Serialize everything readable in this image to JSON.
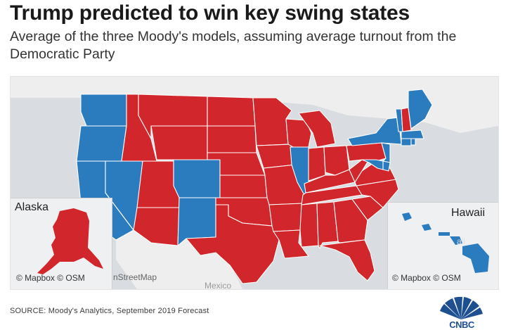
{
  "header": {
    "title": "Trump predicted to win key swing states",
    "subtitle": "Average of the three Moody's models, assuming average turnout from the Democratic Party"
  },
  "colors": {
    "republican": "#d1262b",
    "democrat": "#2b7bbf",
    "background_land": "#eeeeee",
    "water": "#d9dce0"
  },
  "map": {
    "basemap_fragments": {
      "openstreetmap": "nStreetMap",
      "country": "Mexico"
    },
    "alaska_inset": {
      "title": "Alaska",
      "credit": "© Mapbox © OSM",
      "party": "republican"
    },
    "hawaii_inset": {
      "title": "Hawaii",
      "credit": "© Mapbox © OSM",
      "party": "democrat",
      "faint_label": "aii"
    },
    "states": [
      {
        "name": "Washington",
        "party": "democrat"
      },
      {
        "name": "Oregon",
        "party": "democrat"
      },
      {
        "name": "California",
        "party": "democrat"
      },
      {
        "name": "Nevada",
        "party": "democrat"
      },
      {
        "name": "Idaho",
        "party": "republican"
      },
      {
        "name": "Montana",
        "party": "republican"
      },
      {
        "name": "Wyoming",
        "party": "republican"
      },
      {
        "name": "Utah",
        "party": "republican"
      },
      {
        "name": "Arizona",
        "party": "republican"
      },
      {
        "name": "Colorado",
        "party": "democrat"
      },
      {
        "name": "New Mexico",
        "party": "democrat"
      },
      {
        "name": "North Dakota",
        "party": "republican"
      },
      {
        "name": "South Dakota",
        "party": "republican"
      },
      {
        "name": "Nebraska",
        "party": "republican"
      },
      {
        "name": "Kansas",
        "party": "republican"
      },
      {
        "name": "Oklahoma",
        "party": "republican"
      },
      {
        "name": "Texas",
        "party": "republican"
      },
      {
        "name": "Minnesota",
        "party": "republican"
      },
      {
        "name": "Iowa",
        "party": "republican"
      },
      {
        "name": "Missouri",
        "party": "republican"
      },
      {
        "name": "Arkansas",
        "party": "republican"
      },
      {
        "name": "Louisiana",
        "party": "republican"
      },
      {
        "name": "Wisconsin",
        "party": "republican"
      },
      {
        "name": "Illinois",
        "party": "democrat"
      },
      {
        "name": "Michigan",
        "party": "republican"
      },
      {
        "name": "Indiana",
        "party": "republican"
      },
      {
        "name": "Ohio",
        "party": "republican"
      },
      {
        "name": "Kentucky",
        "party": "republican"
      },
      {
        "name": "Tennessee",
        "party": "republican"
      },
      {
        "name": "Mississippi",
        "party": "republican"
      },
      {
        "name": "Alabama",
        "party": "republican"
      },
      {
        "name": "Georgia",
        "party": "republican"
      },
      {
        "name": "Florida",
        "party": "republican"
      },
      {
        "name": "South Carolina",
        "party": "republican"
      },
      {
        "name": "North Carolina",
        "party": "republican"
      },
      {
        "name": "Virginia",
        "party": "republican"
      },
      {
        "name": "West Virginia",
        "party": "republican"
      },
      {
        "name": "Pennsylvania",
        "party": "republican"
      },
      {
        "name": "New York",
        "party": "democrat"
      },
      {
        "name": "New Jersey",
        "party": "democrat"
      },
      {
        "name": "Delaware",
        "party": "democrat"
      },
      {
        "name": "Maryland",
        "party": "democrat"
      },
      {
        "name": "Connecticut",
        "party": "democrat"
      },
      {
        "name": "Rhode Island",
        "party": "democrat"
      },
      {
        "name": "Massachusetts",
        "party": "democrat"
      },
      {
        "name": "Vermont",
        "party": "democrat"
      },
      {
        "name": "New Hampshire",
        "party": "republican"
      },
      {
        "name": "Maine",
        "party": "democrat"
      }
    ]
  },
  "footer": {
    "source": "SOURCE: Moody's Analytics, September 2019 Forecast",
    "brand": "CNBC"
  }
}
